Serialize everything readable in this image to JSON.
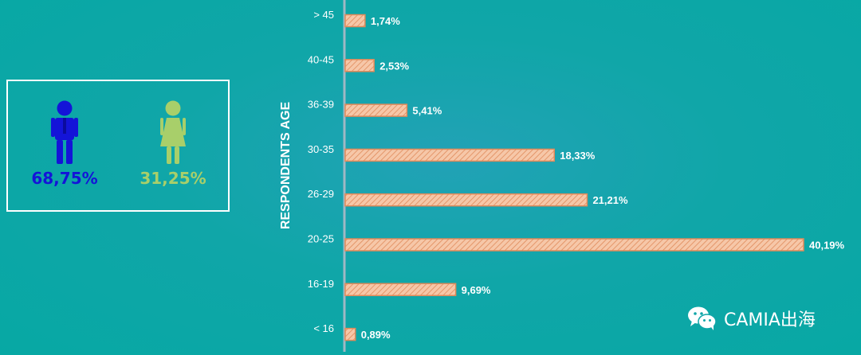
{
  "gender": {
    "male": {
      "percent": "68,75%",
      "icon": "male-person-icon",
      "color": "#1414d8"
    },
    "female": {
      "percent": "31,25%",
      "icon": "female-person-icon",
      "color": "#a8cf6a"
    }
  },
  "chart_data": {
    "type": "bar",
    "orientation": "horizontal",
    "ylabel": "RESPONDENTS AGE",
    "categories": [
      "> 45",
      "40-45",
      "36-39",
      "30-35",
      "26-29",
      "20-25",
      "16-19",
      "< 16"
    ],
    "values": [
      1.74,
      2.53,
      5.41,
      18.33,
      21.21,
      40.19,
      9.69,
      0.89
    ],
    "data_labels": [
      "1,74%",
      "2,53%",
      "5,41%",
      "18,33%",
      "21,21%",
      "40,19%",
      "9,69%",
      "0,89%"
    ],
    "bar_color": "#f6c7a8",
    "bar_hatch_color": "#e08a5a"
  },
  "watermark": {
    "text": "CAMIA出海",
    "icon": "wechat-icon"
  }
}
